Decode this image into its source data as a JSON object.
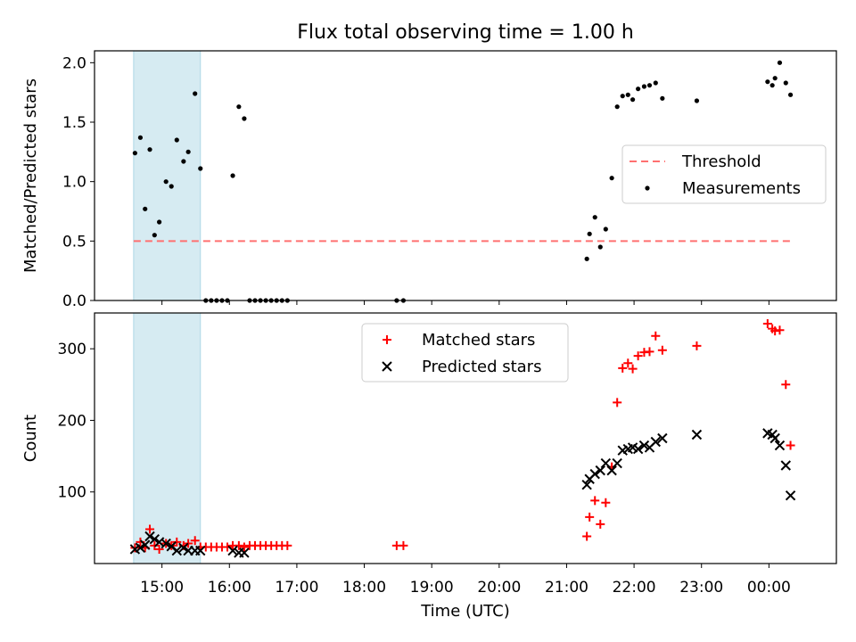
{
  "chart_data": {
    "type": "scatter",
    "title": "Flux total observing time = 1.00 h",
    "xlabel": "Time (UTC)",
    "x_unit": "hours (UTC, continuing past midnight)",
    "x_range": [
      14.0,
      25.0
    ],
    "x_ticks": [
      {
        "v": 15,
        "label": "15:00"
      },
      {
        "v": 16,
        "label": "16:00"
      },
      {
        "v": 17,
        "label": "17:00"
      },
      {
        "v": 18,
        "label": "18:00"
      },
      {
        "v": 19,
        "label": "19:00"
      },
      {
        "v": 20,
        "label": "20:00"
      },
      {
        "v": 21,
        "label": "21:00"
      },
      {
        "v": 22,
        "label": "22:00"
      },
      {
        "v": 23,
        "label": "23:00"
      },
      {
        "v": 24,
        "label": "00:00"
      }
    ],
    "shaded_interval": {
      "x_start": 14.58,
      "x_end": 15.57,
      "color": "#add8e6"
    },
    "panels": [
      {
        "ylabel": "Matched/Predicted stars",
        "ylim": [
          0,
          2.1
        ],
        "y_ticks": [
          0.0,
          0.5,
          1.0,
          1.5,
          2.0
        ],
        "y_tick_labels": [
          "0.0",
          "0.5",
          "1.0",
          "1.5",
          "2.0"
        ],
        "legend": {
          "location": "center-right",
          "entries": [
            "Threshold",
            "Measurements"
          ]
        },
        "threshold": {
          "name": "Threshold",
          "value": 0.5,
          "x_start": 14.58,
          "x_end": 24.33,
          "color": "#ff7070",
          "style": "dashed"
        },
        "series": [
          {
            "name": "Measurements",
            "marker": "dot",
            "color": "#000000",
            "points": [
              [
                14.6,
                1.24
              ],
              [
                14.68,
                1.37
              ],
              [
                14.75,
                0.77
              ],
              [
                14.82,
                1.27
              ],
              [
                14.89,
                0.55
              ],
              [
                14.96,
                0.66
              ],
              [
                15.06,
                1.0
              ],
              [
                15.14,
                0.96
              ],
              [
                15.22,
                1.35
              ],
              [
                15.32,
                1.17
              ],
              [
                15.39,
                1.25
              ],
              [
                15.49,
                1.74
              ],
              [
                15.57,
                1.11
              ],
              [
                15.65,
                0.0
              ],
              [
                15.73,
                0.0
              ],
              [
                15.81,
                0.0
              ],
              [
                15.89,
                0.0
              ],
              [
                15.97,
                0.0
              ],
              [
                16.05,
                1.05
              ],
              [
                16.14,
                1.63
              ],
              [
                16.22,
                1.53
              ],
              [
                16.3,
                0.0
              ],
              [
                16.38,
                0.0
              ],
              [
                16.46,
                0.0
              ],
              [
                16.54,
                0.0
              ],
              [
                16.62,
                0.0
              ],
              [
                16.7,
                0.0
              ],
              [
                16.78,
                0.0
              ],
              [
                16.86,
                0.0
              ],
              [
                18.48,
                0.0
              ],
              [
                18.58,
                0.0
              ],
              [
                21.3,
                0.35
              ],
              [
                21.34,
                0.56
              ],
              [
                21.42,
                0.7
              ],
              [
                21.5,
                0.45
              ],
              [
                21.58,
                0.6
              ],
              [
                21.67,
                1.03
              ],
              [
                21.75,
                1.63
              ],
              [
                21.83,
                1.72
              ],
              [
                21.91,
                1.73
              ],
              [
                21.98,
                1.69
              ],
              [
                22.06,
                1.78
              ],
              [
                22.15,
                1.8
              ],
              [
                22.23,
                1.81
              ],
              [
                22.32,
                1.83
              ],
              [
                22.42,
                1.7
              ],
              [
                22.93,
                1.68
              ],
              [
                23.98,
                1.84
              ],
              [
                24.05,
                1.81
              ],
              [
                24.09,
                1.87
              ],
              [
                24.16,
                2.0
              ],
              [
                24.25,
                1.83
              ],
              [
                24.32,
                1.73
              ]
            ]
          }
        ]
      },
      {
        "ylabel": "Count",
        "ylim": [
          0,
          350
        ],
        "y_ticks": [
          100,
          200,
          300
        ],
        "y_tick_labels": [
          "100",
          "200",
          "300"
        ],
        "legend": {
          "location": "top-center",
          "entries": [
            "Matched stars",
            "Predicted stars"
          ]
        },
        "series": [
          {
            "name": "Matched stars",
            "marker": "plus",
            "color": "#ff0000",
            "points": [
              [
                14.6,
                22
              ],
              [
                14.68,
                30
              ],
              [
                14.75,
                22
              ],
              [
                14.82,
                48
              ],
              [
                14.89,
                25
              ],
              [
                14.96,
                20
              ],
              [
                15.06,
                28
              ],
              [
                15.14,
                25
              ],
              [
                15.22,
                30
              ],
              [
                15.32,
                25
              ],
              [
                15.39,
                28
              ],
              [
                15.49,
                32
              ],
              [
                15.57,
                23
              ],
              [
                15.65,
                23
              ],
              [
                15.73,
                23
              ],
              [
                15.81,
                23
              ],
              [
                15.89,
                23
              ],
              [
                15.97,
                23
              ],
              [
                16.05,
                25
              ],
              [
                16.14,
                25
              ],
              [
                16.22,
                23
              ],
              [
                16.3,
                25
              ],
              [
                16.38,
                25
              ],
              [
                16.46,
                25
              ],
              [
                16.54,
                25
              ],
              [
                16.62,
                25
              ],
              [
                16.7,
                25
              ],
              [
                16.78,
                25
              ],
              [
                16.86,
                25
              ],
              [
                18.48,
                25
              ],
              [
                18.58,
                25
              ],
              [
                21.3,
                38
              ],
              [
                21.34,
                65
              ],
              [
                21.42,
                88
              ],
              [
                21.5,
                55
              ],
              [
                21.58,
                85
              ],
              [
                21.67,
                135
              ],
              [
                21.75,
                225
              ],
              [
                21.83,
                273
              ],
              [
                21.91,
                280
              ],
              [
                21.98,
                272
              ],
              [
                22.06,
                290
              ],
              [
                22.15,
                295
              ],
              [
                22.23,
                296
              ],
              [
                22.32,
                318
              ],
              [
                22.42,
                298
              ],
              [
                22.93,
                304
              ],
              [
                23.98,
                335
              ],
              [
                24.05,
                328
              ],
              [
                24.09,
                325
              ],
              [
                24.16,
                326
              ],
              [
                24.25,
                250
              ],
              [
                24.32,
                165
              ]
            ]
          },
          {
            "name": "Predicted stars",
            "marker": "x",
            "color": "#000000",
            "points": [
              [
                14.6,
                20
              ],
              [
                14.68,
                22
              ],
              [
                14.75,
                26
              ],
              [
                14.82,
                38
              ],
              [
                14.89,
                34
              ],
              [
                14.96,
                30
              ],
              [
                15.06,
                28
              ],
              [
                15.14,
                24
              ],
              [
                15.22,
                18
              ],
              [
                15.32,
                22
              ],
              [
                15.39,
                18
              ],
              [
                15.49,
                18
              ],
              [
                15.57,
                18
              ],
              [
                16.05,
                18
              ],
              [
                16.14,
                15
              ],
              [
                16.22,
                15
              ],
              [
                21.3,
                110
              ],
              [
                21.34,
                118
              ],
              [
                21.42,
                125
              ],
              [
                21.5,
                130
              ],
              [
                21.58,
                140
              ],
              [
                21.67,
                130
              ],
              [
                21.75,
                140
              ],
              [
                21.83,
                158
              ],
              [
                21.91,
                160
              ],
              [
                21.98,
                162
              ],
              [
                22.06,
                160
              ],
              [
                22.15,
                165
              ],
              [
                22.23,
                162
              ],
              [
                22.32,
                170
              ],
              [
                22.42,
                175
              ],
              [
                22.93,
                180
              ],
              [
                23.98,
                182
              ],
              [
                24.05,
                180
              ],
              [
                24.09,
                175
              ],
              [
                24.16,
                165
              ],
              [
                24.25,
                137
              ],
              [
                24.32,
                95
              ]
            ]
          }
        ]
      }
    ]
  }
}
